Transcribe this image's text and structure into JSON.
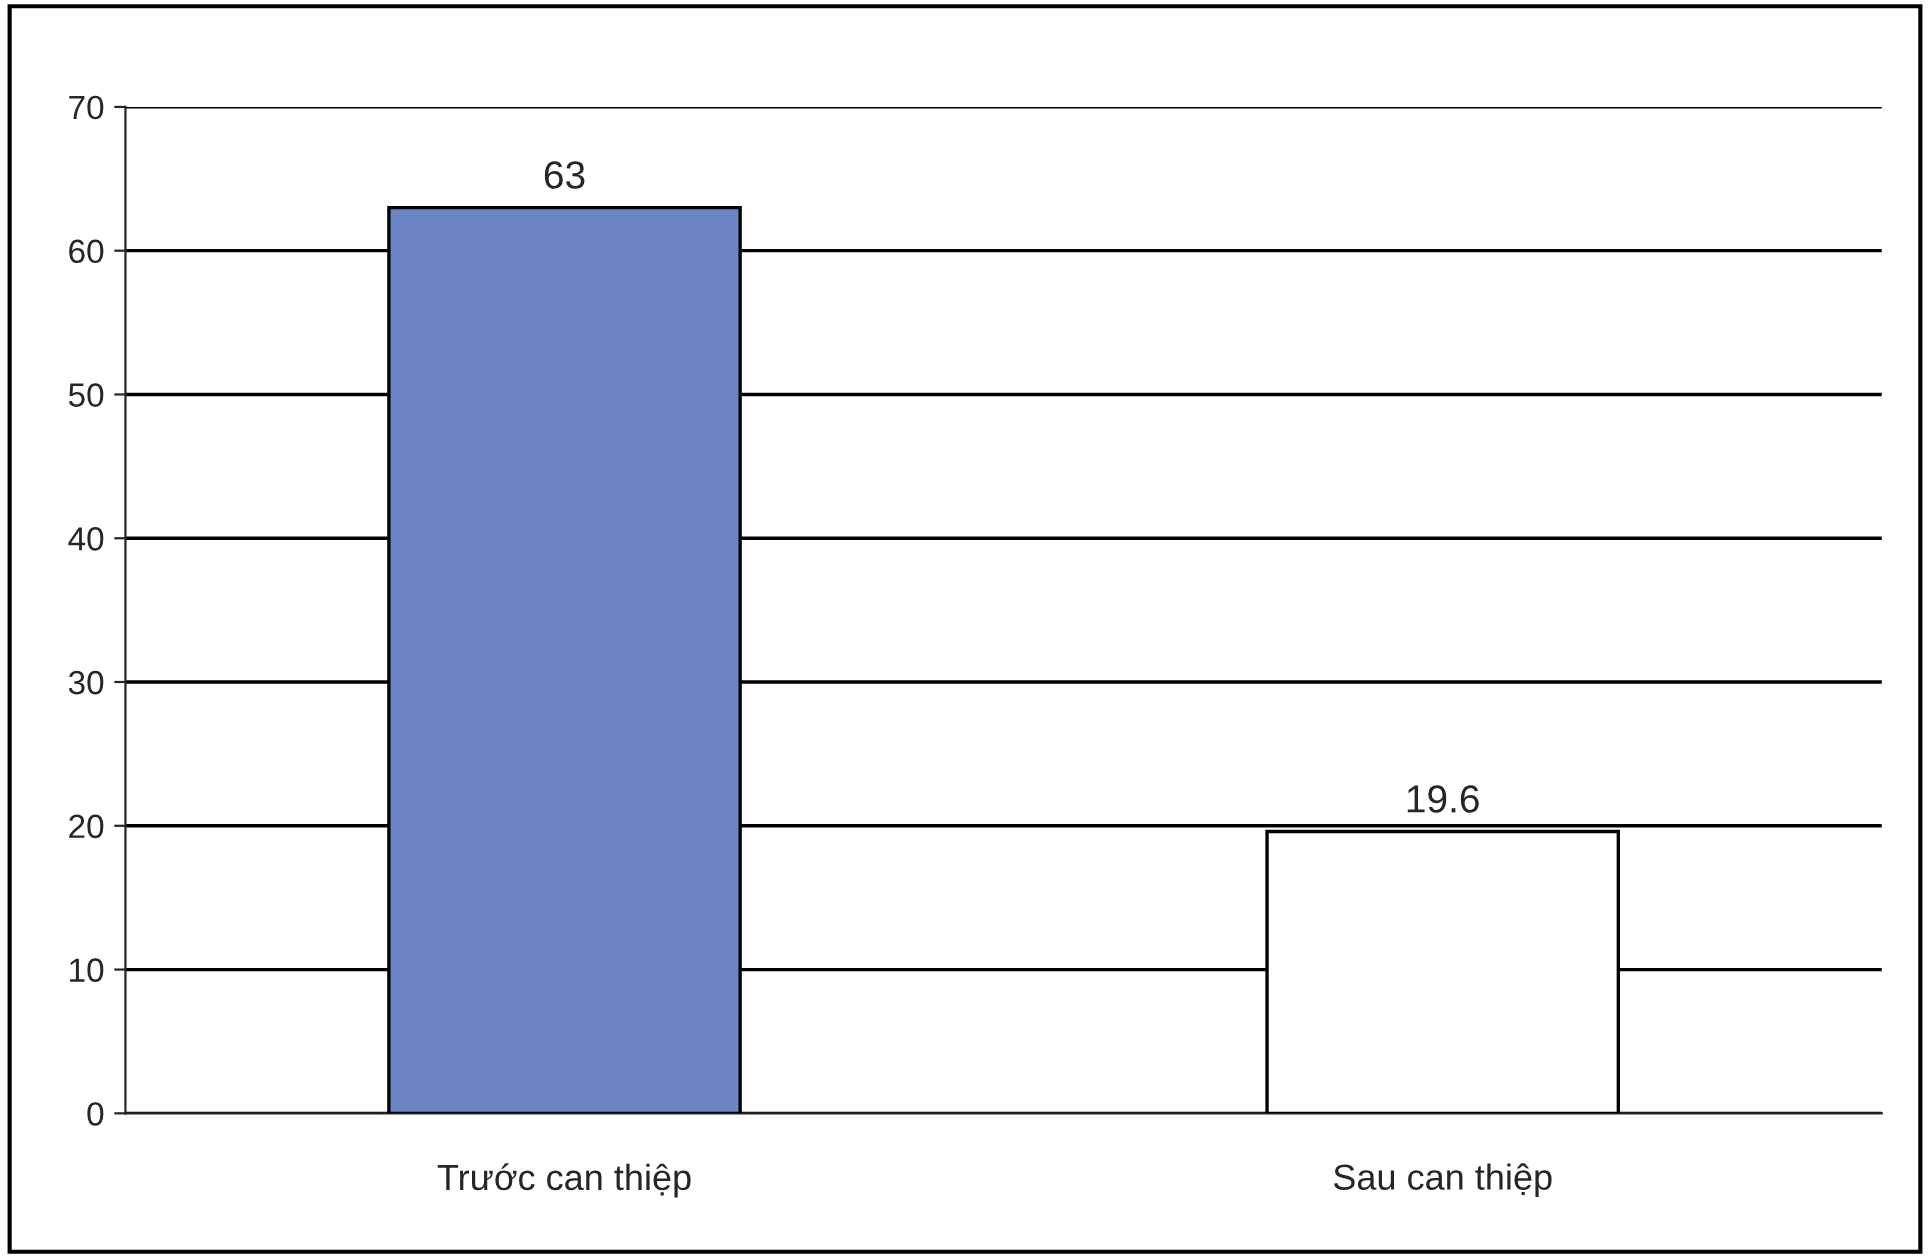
{
  "chart_data": {
    "type": "bar",
    "categories": [
      "Trước can thiệp",
      "Sau can thiệp"
    ],
    "values": [
      63,
      19.6
    ],
    "colors": [
      "#6b84c4",
      "#ffffff"
    ],
    "ylim": [
      0,
      70
    ],
    "yticks": [
      0,
      10,
      20,
      30,
      40,
      50,
      60,
      70
    ],
    "grid": "y",
    "data_labels": true,
    "legend": false
  }
}
